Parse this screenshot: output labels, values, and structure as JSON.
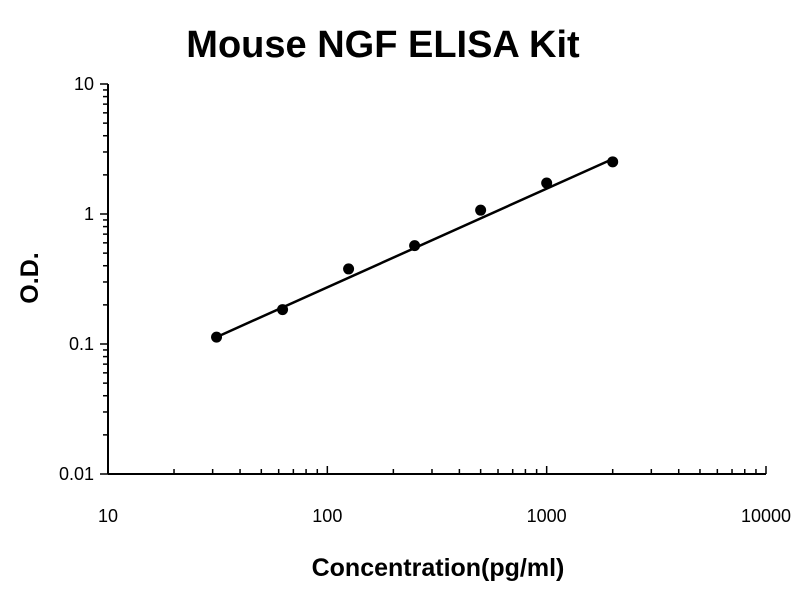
{
  "chart_data": {
    "type": "scatter",
    "title": "Mouse NGF ELISA Kit",
    "xlabel": "Concentration(pg/ml)",
    "ylabel": "O.D.",
    "xscale": "log",
    "yscale": "log",
    "xlim": [
      10,
      10000
    ],
    "ylim": [
      0.01,
      10
    ],
    "xticks": [
      "10",
      "100",
      "1000",
      "10000"
    ],
    "yticks": [
      "0.01",
      "0.1",
      "1",
      "10"
    ],
    "grid": false,
    "legend": "none",
    "series": [
      {
        "points": [
          {
            "x": 31.25,
            "y": 0.113
          },
          {
            "x": 62.5,
            "y": 0.184
          },
          {
            "x": 125,
            "y": 0.378
          },
          {
            "x": 250,
            "y": 0.571
          },
          {
            "x": 500,
            "y": 1.07
          },
          {
            "x": 1000,
            "y": 1.73
          },
          {
            "x": 2000,
            "y": 2.52
          }
        ]
      }
    ],
    "trendline": {
      "x": [
        31.25,
        2000
      ],
      "y": [
        0.113,
        2.65
      ]
    },
    "colors": {
      "marker": "#000000",
      "line": "#000000",
      "axis": "#000000"
    }
  }
}
